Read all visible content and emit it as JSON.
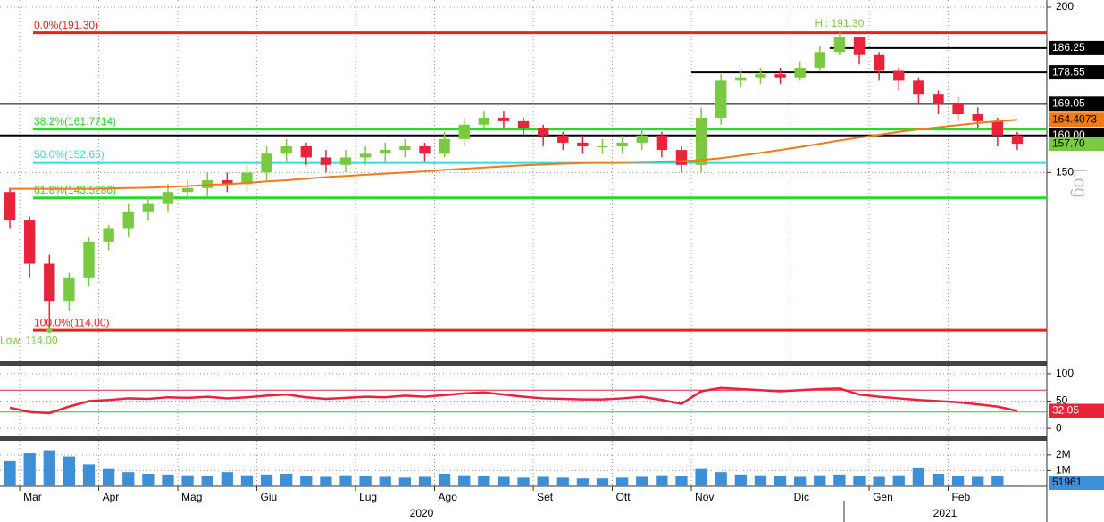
{
  "chart_data": [
    {
      "type": "candlestick",
      "log_scale": true,
      "scale_label": "Log",
      "categories": [
        null,
        "Mar",
        null,
        null,
        null,
        "Apr",
        null,
        null,
        null,
        "Mag",
        null,
        null,
        null,
        "Giu",
        null,
        null,
        null,
        null,
        "Lug",
        null,
        null,
        null,
        "Ago",
        null,
        null,
        null,
        null,
        "Set",
        null,
        null,
        null,
        "Ott",
        null,
        null,
        null,
        "Nov",
        null,
        null,
        null,
        null,
        "Dic",
        null,
        null,
        null,
        "Gen",
        null,
        null,
        null,
        "Feb",
        null,
        null,
        null
      ],
      "year_labels": [
        "2020",
        "2021"
      ],
      "open": [
        145,
        138,
        128,
        120,
        125,
        133,
        136,
        140,
        142,
        145,
        146,
        148,
        147,
        150,
        155,
        157,
        154,
        152,
        154,
        155,
        156,
        157,
        155,
        159,
        163,
        165,
        164,
        162,
        160,
        158,
        157,
        157,
        158,
        160,
        156,
        152,
        165,
        176,
        177,
        178,
        177,
        180,
        185,
        190,
        184,
        179,
        176,
        172,
        169,
        166,
        164,
        160
      ],
      "high": [
        146,
        139,
        130,
        126,
        134,
        137,
        142,
        144,
        147,
        148,
        150,
        150,
        152,
        157,
        159,
        158,
        156,
        156,
        157,
        158,
        159,
        158,
        161,
        165,
        167,
        167,
        165,
        163,
        161,
        160,
        159,
        160,
        162,
        161,
        157,
        168,
        178,
        179,
        180,
        180,
        182,
        187,
        191.3,
        190,
        185,
        180,
        177,
        173,
        171,
        168,
        165,
        161
      ],
      "low": [
        136,
        125,
        114,
        118,
        123,
        131,
        134,
        138,
        140,
        143,
        144,
        145,
        145,
        148,
        153,
        152,
        150,
        150,
        152,
        153,
        154,
        153,
        154,
        157,
        162,
        162,
        160,
        157,
        156,
        155,
        155,
        155,
        156,
        154,
        150,
        150,
        163,
        174,
        175,
        175,
        176,
        179,
        184,
        181,
        176,
        173,
        169,
        166,
        164,
        162,
        157,
        156
      ],
      "close": [
        138,
        128,
        120,
        125,
        133,
        136,
        140,
        142,
        145,
        146,
        148,
        147,
        150,
        155,
        157,
        154,
        152,
        154,
        155,
        156,
        157,
        155,
        159,
        163,
        165,
        164,
        162,
        160,
        158,
        157,
        157,
        158,
        160,
        156,
        152,
        165,
        176,
        177,
        178,
        177,
        180,
        185,
        190,
        184,
        179,
        176,
        172,
        169,
        166,
        164,
        160,
        157.7
      ],
      "last_close_label": "157.70",
      "up_color": "#7ac943",
      "down_color": "#e8233a",
      "hi_label": "Hi: 191.30",
      "low_label": "Low: 114.00",
      "ma": {
        "color": "#f07b18",
        "values": [
          145.8,
          145.8,
          145.8,
          145.8,
          145.8,
          145.9,
          146,
          146.1,
          146.3,
          146.5,
          146.8,
          147,
          147.3,
          147.7,
          148,
          148.4,
          148.8,
          149.1,
          149.4,
          149.7,
          150,
          150.3,
          150.7,
          151,
          151.3,
          151.6,
          151.9,
          152.1,
          152.3,
          152.5,
          152.6,
          152.7,
          152.8,
          152.9,
          153,
          153.3,
          153.8,
          154.5,
          155.2,
          156,
          156.8,
          157.7,
          158.6,
          159.4,
          160.2,
          161,
          161.7,
          162.3,
          162.9,
          163.5,
          164,
          164.4073
        ]
      },
      "fib_levels": [
        {
          "value": 191.3,
          "label": "0.0%(191.30)",
          "color": "#e8231f"
        },
        {
          "value": 161.7714,
          "label": "38.2%(161.7714)",
          "color": "#22dd22"
        },
        {
          "value": 152.65,
          "label": "50.0%(152.65)",
          "color": "#33dddd"
        },
        {
          "value": 143.5286,
          "label": "61.8%(143.5286)",
          "color": "#22dd22"
        },
        {
          "value": 114,
          "label": "100.0%(114.00)",
          "color": "#e8231f"
        }
      ],
      "levels": [
        {
          "value": 186.25,
          "label": "186.25"
        },
        {
          "value": 178.55,
          "label": "178.55"
        },
        {
          "value": 169.05,
          "label": "169.05"
        },
        {
          "value": 160,
          "label": "160.00"
        }
      ],
      "ylim": [
        108,
        202.5
      ],
      "yticks": [
        150,
        200
      ],
      "grid": true
    },
    {
      "type": "line",
      "color": "#e8233a",
      "values": [
        38,
        30,
        28,
        40,
        50,
        52,
        55,
        54,
        57,
        56,
        58,
        55,
        57,
        60,
        62,
        57,
        54,
        56,
        58,
        57,
        60,
        58,
        61,
        64,
        66,
        62,
        58,
        55,
        54,
        53,
        53,
        55,
        58,
        52,
        45,
        68,
        74,
        72,
        70,
        68,
        70,
        72,
        73,
        62,
        58,
        55,
        52,
        50,
        48,
        44,
        40,
        32.05
      ],
      "bands": [
        {
          "value": 70,
          "color": "#e8233a"
        },
        {
          "value": 30,
          "color": "#22cc22"
        }
      ],
      "ylim": [
        -14.5,
        114.5
      ],
      "yticks": [
        0,
        50,
        100
      ],
      "grid": true
    },
    {
      "type": "bar",
      "color": "#3d8fd8",
      "values": [
        1600000,
        2100000,
        2300000,
        1900000,
        1400000,
        1100000,
        900000,
        800000,
        750000,
        700000,
        650000,
        900000,
        700000,
        750000,
        800000,
        650000,
        600000,
        700000,
        650000,
        600000,
        550000,
        600000,
        800000,
        700000,
        650000,
        600000,
        550000,
        600000,
        550000,
        500000,
        500000,
        550000,
        600000,
        700000,
        650000,
        1100000,
        900000,
        750000,
        700000,
        650000,
        600000,
        700000,
        750000,
        650000,
        600000,
        700000,
        1200000,
        800000,
        650000,
        600000,
        650000,
        51961
      ],
      "ylim": [
        0,
        2900000
      ],
      "yticks": [
        {
          "value": 1000000,
          "label": "1M"
        },
        {
          "value": 2000000,
          "label": "2M"
        }
      ],
      "grid": true
    }
  ]
}
